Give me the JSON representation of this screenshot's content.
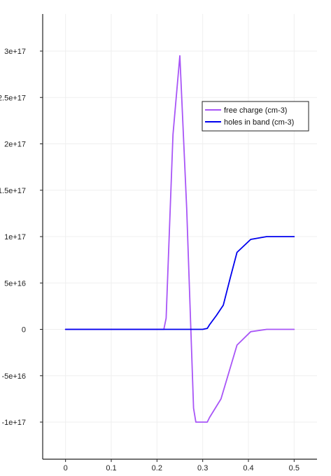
{
  "chart_data": {
    "type": "line",
    "title": "",
    "xlabel": "",
    "ylabel": "",
    "xlim": [
      -0.05,
      0.55
    ],
    "ylim": [
      -1.4e+17,
      3.4e+17
    ],
    "grid": true,
    "legend_position": "top-right",
    "x_ticks": [
      {
        "value": 0,
        "label": "0"
      },
      {
        "value": 0.1,
        "label": "0.1"
      },
      {
        "value": 0.2,
        "label": "0.2"
      },
      {
        "value": 0.3,
        "label": "0.3"
      },
      {
        "value": 0.4,
        "label": "0.4"
      },
      {
        "value": 0.5,
        "label": "0.5"
      }
    ],
    "y_ticks": [
      {
        "value": -1e+17,
        "label": "-1e+17"
      },
      {
        "value": -5e+16,
        "label": "-5e+16"
      },
      {
        "value": 0,
        "label": "0"
      },
      {
        "value": 5e+16,
        "label": "5e+16"
      },
      {
        "value": 1e+17,
        "label": "1e+17"
      },
      {
        "value": 1.5e+17,
        "label": "1.5e+17"
      },
      {
        "value": 2e+17,
        "label": "2e+17"
      },
      {
        "value": 2.5e+17,
        "label": "2.5e+17"
      },
      {
        "value": 3e+17,
        "label": "3e+17"
      }
    ],
    "series": [
      {
        "name": "free charge (cm-3)",
        "color": "#a855f7",
        "x": [
          0,
          0.05,
          0.1,
          0.15,
          0.2,
          0.215,
          0.22,
          0.235,
          0.25,
          0.265,
          0.28,
          0.285,
          0.3,
          0.31,
          0.315,
          0.34,
          0.375,
          0.405,
          0.44,
          0.5
        ],
        "y": [
          0,
          0,
          0,
          0,
          0,
          0,
          1.2e+16,
          2.1e+17,
          2.95e+17,
          1.3e+17,
          -8.5e+16,
          -1e+17,
          -1e+17,
          -1e+17,
          -9.5e+16,
          -7.5e+16,
          -1.7e+16,
          -2500000000000000.0,
          0,
          0
        ]
      },
      {
        "name": "holes in band (cm-3)",
        "color": "#0000ee",
        "x": [
          0,
          0.1,
          0.2,
          0.25,
          0.3,
          0.31,
          0.315,
          0.33,
          0.345,
          0.36,
          0.375,
          0.405,
          0.44,
          0.5
        ],
        "y": [
          0,
          0,
          0,
          0,
          0,
          1000000000000000.0,
          5000000000000000.0,
          1.5e+16,
          2.6e+16,
          5.5e+16,
          8.3e+16,
          9.7e+16,
          1e+17,
          1e+17
        ]
      }
    ]
  }
}
